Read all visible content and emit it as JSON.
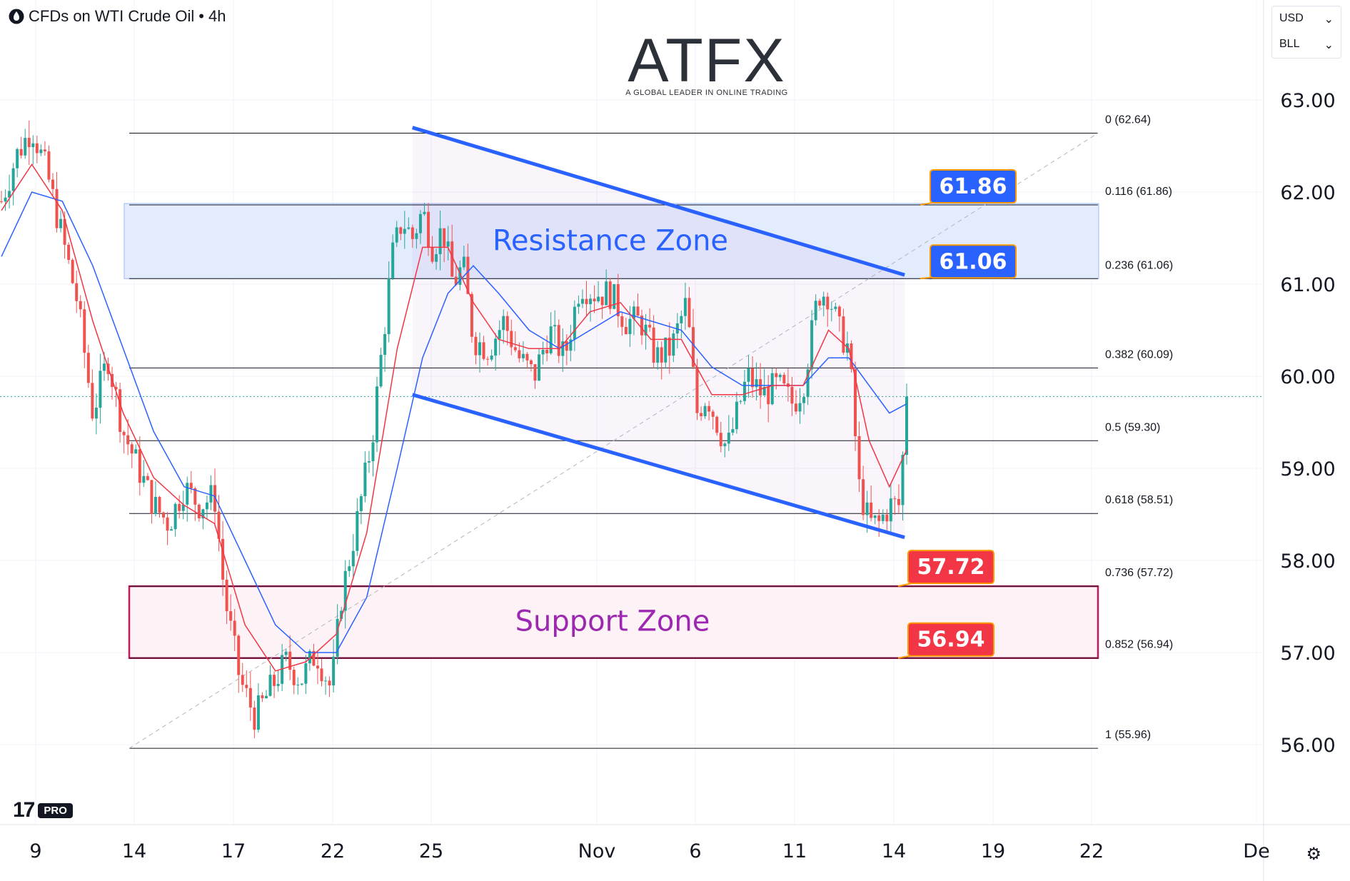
{
  "header": {
    "symbol_title": "CFDs on WTI Crude Oil",
    "interval": "4h",
    "separator": "•"
  },
  "units": {
    "currency": "USD",
    "unit": "BLL"
  },
  "logo": {
    "word": "ATFX",
    "tagline": "A GLOBAL LEADER IN ONLINE TRADING"
  },
  "tv": {
    "mark": "17",
    "badge": "PRO"
  },
  "icons": {
    "settings": "gear-icon",
    "drop": "oil-drop-icon",
    "chevron": "chevron-down-icon"
  },
  "colors": {
    "up": "#26a69a",
    "down": "#ef5350",
    "channel": "#2962ff",
    "ma_fast": "#f23645",
    "ma_slow": "#2962ff",
    "resistance_fill": "#e3ecfd",
    "support_border": "#c2185b",
    "support_text": "#9c27b0",
    "resistance_text": "#2962ff"
  },
  "chart_data": {
    "type": "candlestick",
    "y_ticks": [
      "63.00",
      "62.00",
      "61.00",
      "60.00",
      "59.00",
      "58.00",
      "57.00",
      "56.00"
    ],
    "x_ticks": [
      "9",
      "14",
      "17",
      "22",
      "25",
      "Nov",
      "6",
      "11",
      "14",
      "19",
      "22",
      "De"
    ],
    "ylim": [
      55.3,
      63.3
    ],
    "x_domain": [
      0,
      100
    ],
    "last_price": 59.78,
    "fib_levels": [
      {
        "label": "0 (62.64)",
        "value": 62.64
      },
      {
        "label": "0.116 (61.86)",
        "value": 61.86
      },
      {
        "label": "0.236 (61.06)",
        "value": 61.06
      },
      {
        "label": "0.382 (60.09)",
        "value": 60.09
      },
      {
        "label": "0.5 (59.30)",
        "value": 59.3
      },
      {
        "label": "0.618 (58.51)",
        "value": 58.51
      },
      {
        "label": "0.736 (57.72)",
        "value": 57.72
      },
      {
        "label": "0.852 (56.94)",
        "value": 56.94
      },
      {
        "label": "1 (55.96)",
        "value": 55.96
      }
    ],
    "zones": [
      {
        "name": "Resistance Zone",
        "low": 61.06,
        "high": 61.86
      },
      {
        "name": "Support Zone",
        "low": 56.94,
        "high": 57.72
      }
    ],
    "price_callouts": [
      {
        "label": "61.86",
        "value": 61.86,
        "color": "#2962ff"
      },
      {
        "label": "61.06",
        "value": 61.06,
        "color": "#2962ff"
      },
      {
        "label": "57.72",
        "value": 57.72,
        "color": "#f23645"
      },
      {
        "label": "56.94",
        "value": 56.94,
        "color": "#f23645"
      }
    ],
    "channel": {
      "upper": [
        [
          40.5,
          62.7
        ],
        [
          89.0,
          61.1
        ]
      ],
      "lower": [
        [
          40.5,
          59.8
        ],
        [
          89.0,
          58.25
        ]
      ]
    },
    "close_path": [
      [
        0,
        61.9
      ],
      [
        1.5,
        62.4
      ],
      [
        3,
        62.7
      ],
      [
        4.5,
        62.2
      ],
      [
        6,
        61.5
      ],
      [
        7.5,
        60.8
      ],
      [
        9,
        59.6
      ],
      [
        10.5,
        60.2
      ],
      [
        12,
        59.4
      ],
      [
        13.5,
        59.0
      ],
      [
        15,
        58.6
      ],
      [
        16.5,
        58.4
      ],
      [
        18,
        58.8
      ],
      [
        19.5,
        58.6
      ],
      [
        21,
        58.7
      ],
      [
        22,
        57.6
      ],
      [
        23.5,
        56.7
      ],
      [
        25,
        56.3
      ],
      [
        26.5,
        56.6
      ],
      [
        28,
        56.9
      ],
      [
        29.5,
        56.7
      ],
      [
        31,
        57.0
      ],
      [
        32.5,
        56.6
      ],
      [
        33.5,
        57.6
      ],
      [
        35,
        58.4
      ],
      [
        36.5,
        59.3
      ],
      [
        37.5,
        60.3
      ],
      [
        38.5,
        61.3
      ],
      [
        39.5,
        61.7
      ],
      [
        40.5,
        61.5
      ],
      [
        41.5,
        61.8
      ],
      [
        42.5,
        61.4
      ],
      [
        43.5,
        61.6
      ],
      [
        44.5,
        61.0
      ],
      [
        45.5,
        61.2
      ],
      [
        46.5,
        60.4
      ],
      [
        48,
        60.3
      ],
      [
        49.5,
        60.6
      ],
      [
        51,
        60.2
      ],
      [
        52.5,
        60.0
      ],
      [
        54,
        60.5
      ],
      [
        55.5,
        60.2
      ],
      [
        57,
        61.0
      ],
      [
        58.5,
        60.9
      ],
      [
        60,
        60.9
      ],
      [
        61.5,
        60.6
      ],
      [
        63,
        60.6
      ],
      [
        64.5,
        60.2
      ],
      [
        66,
        60.3
      ],
      [
        67.5,
        60.8
      ],
      [
        68.5,
        59.6
      ],
      [
        69.5,
        59.8
      ],
      [
        70.5,
        59.5
      ],
      [
        71.5,
        59.2
      ],
      [
        72.5,
        59.6
      ],
      [
        73.5,
        60.0
      ],
      [
        75,
        59.8
      ],
      [
        76.5,
        59.9
      ],
      [
        78,
        59.7
      ],
      [
        79,
        59.9
      ],
      [
        80.5,
        60.9
      ],
      [
        81.5,
        60.9
      ],
      [
        82.5,
        60.5
      ],
      [
        83.5,
        60.3
      ],
      [
        84.5,
        58.8
      ],
      [
        85.5,
        58.4
      ],
      [
        86.5,
        58.4
      ],
      [
        87.5,
        58.6
      ],
      [
        88.5,
        58.6
      ],
      [
        89.2,
        59.78
      ]
    ],
    "ma_fast": [
      [
        0,
        61.8
      ],
      [
        3,
        62.3
      ],
      [
        6,
        61.8
      ],
      [
        9,
        60.6
      ],
      [
        12,
        59.6
      ],
      [
        15,
        58.9
      ],
      [
        18,
        58.6
      ],
      [
        21,
        58.4
      ],
      [
        24,
        57.3
      ],
      [
        27,
        56.8
      ],
      [
        30,
        56.9
      ],
      [
        33,
        57.2
      ],
      [
        36,
        58.3
      ],
      [
        39,
        60.3
      ],
      [
        41.5,
        61.4
      ],
      [
        44,
        61.4
      ],
      [
        46.5,
        60.8
      ],
      [
        49,
        60.4
      ],
      [
        52,
        60.3
      ],
      [
        55,
        60.3
      ],
      [
        58,
        60.7
      ],
      [
        61,
        60.8
      ],
      [
        64,
        60.4
      ],
      [
        67,
        60.4
      ],
      [
        70,
        59.8
      ],
      [
        73,
        59.8
      ],
      [
        76,
        59.9
      ],
      [
        79,
        59.9
      ],
      [
        81.5,
        60.5
      ],
      [
        83.5,
        60.3
      ],
      [
        85.5,
        59.3
      ],
      [
        87.5,
        58.8
      ],
      [
        89.2,
        59.2
      ]
    ],
    "ma_slow": [
      [
        0,
        61.3
      ],
      [
        3,
        62.0
      ],
      [
        6,
        61.9
      ],
      [
        9,
        61.2
      ],
      [
        12,
        60.3
      ],
      [
        15,
        59.4
      ],
      [
        18,
        58.8
      ],
      [
        21,
        58.7
      ],
      [
        24,
        58.0
      ],
      [
        27,
        57.3
      ],
      [
        30,
        57.0
      ],
      [
        33,
        57.0
      ],
      [
        36,
        57.6
      ],
      [
        39,
        59.0
      ],
      [
        41.5,
        60.2
      ],
      [
        44,
        60.9
      ],
      [
        46.5,
        61.2
      ],
      [
        49,
        60.9
      ],
      [
        52,
        60.5
      ],
      [
        55,
        60.3
      ],
      [
        58,
        60.5
      ],
      [
        61,
        60.7
      ],
      [
        64,
        60.6
      ],
      [
        67,
        60.5
      ],
      [
        70,
        60.1
      ],
      [
        73,
        59.9
      ],
      [
        76,
        59.9
      ],
      [
        79,
        59.9
      ],
      [
        81.5,
        60.2
      ],
      [
        83.5,
        60.2
      ],
      [
        85.5,
        59.9
      ],
      [
        87.5,
        59.6
      ],
      [
        89.2,
        59.7
      ]
    ]
  }
}
